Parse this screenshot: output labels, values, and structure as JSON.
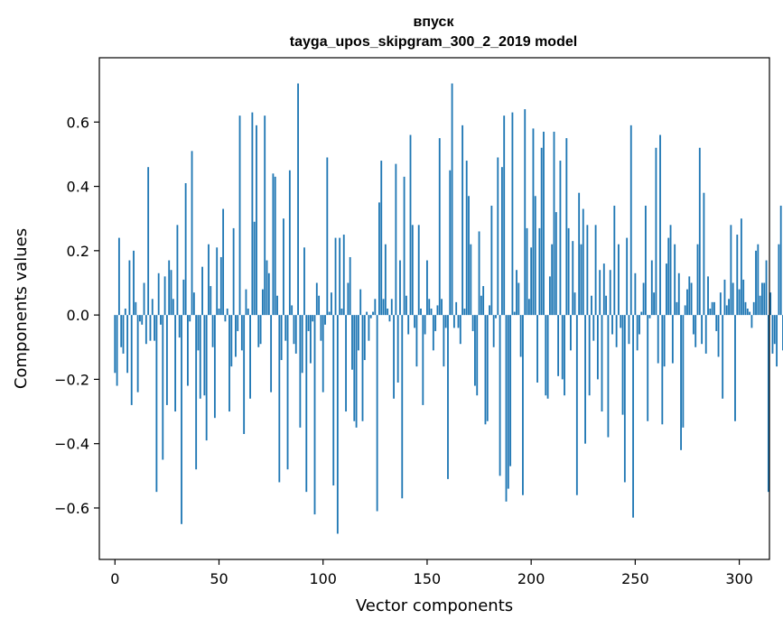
{
  "chart_data": {
    "type": "bar",
    "title": "впуск",
    "subtitle": "tayga_upos_skipgram_300_2_2019 model",
    "xlabel": "Vector components",
    "ylabel": "Components values",
    "xlim": [
      -7.5,
      314.5
    ],
    "ylim": [
      -0.76,
      0.8
    ],
    "x_ticks": [
      0,
      50,
      100,
      150,
      200,
      250,
      300
    ],
    "y_ticks": [
      -0.6,
      -0.4,
      -0.2,
      0.0,
      0.2,
      0.4,
      0.6
    ],
    "x_tick_labels": [
      "0",
      "50",
      "100",
      "150",
      "200",
      "250",
      "300"
    ],
    "y_tick_labels": [
      "−0.6",
      "−0.4",
      "−0.2",
      "0.0",
      "0.2",
      "0.4",
      "0.6"
    ],
    "bar_color": "#1f77b4",
    "values": [
      -0.18,
      -0.22,
      0.24,
      -0.1,
      -0.12,
      0.02,
      -0.18,
      0.17,
      -0.28,
      0.2,
      0.04,
      -0.24,
      -0.02,
      -0.03,
      0.1,
      -0.09,
      0.46,
      -0.08,
      0.05,
      -0.08,
      -0.55,
      0.13,
      -0.03,
      -0.45,
      0.12,
      -0.28,
      0.17,
      0.14,
      0.05,
      -0.3,
      0.28,
      -0.07,
      -0.65,
      0.11,
      0.41,
      -0.22,
      -0.02,
      0.51,
      0.07,
      -0.48,
      -0.11,
      -0.26,
      0.15,
      -0.25,
      -0.39,
      0.22,
      0.09,
      -0.1,
      -0.32,
      0.21,
      0.02,
      0.18,
      0.33,
      -0.02,
      0.02,
      -0.3,
      -0.16,
      0.27,
      -0.13,
      -0.05,
      0.62,
      -0.11,
      -0.37,
      0.08,
      0.02,
      -0.26,
      0.63,
      0.29,
      0.59,
      -0.1,
      -0.09,
      0.08,
      0.62,
      0.17,
      0.13,
      -0.24,
      0.44,
      0.43,
      0.06,
      -0.52,
      -0.14,
      0.3,
      -0.08,
      -0.48,
      0.45,
      0.03,
      -0.09,
      -0.12,
      0.72,
      -0.35,
      -0.18,
      0.21,
      -0.55,
      -0.05,
      -0.15,
      -0.02,
      -0.62,
      0.1,
      0.06,
      -0.08,
      -0.24,
      -0.03,
      0.49,
      0.01,
      0.07,
      -0.53,
      0.24,
      -0.68,
      0.24,
      0.02,
      0.25,
      -0.3,
      0.1,
      0.18,
      -0.17,
      -0.33,
      -0.35,
      -0.11,
      0.08,
      -0.33,
      -0.14,
      0.01,
      -0.08,
      -0.01,
      0.01,
      0.05,
      -0.61,
      0.35,
      0.48,
      0.05,
      0.22,
      0.02,
      -0.02,
      0.05,
      -0.26,
      0.47,
      -0.21,
      0.17,
      -0.57,
      0.43,
      0.06,
      -0.06,
      0.56,
      0.28,
      -0.04,
      -0.16,
      0.28,
      0.02,
      -0.28,
      -0.06,
      0.17,
      0.05,
      0.02,
      -0.11,
      -0.05,
      0.03,
      0.55,
      0.05,
      -0.16,
      -0.04,
      -0.51,
      0.45,
      0.72,
      -0.04,
      0.04,
      -0.04,
      -0.09,
      0.59,
      0.02,
      0.48,
      0.37,
      0.22,
      -0.05,
      -0.22,
      -0.25,
      0.26,
      0.06,
      0.09,
      -0.34,
      -0.33,
      0.03,
      0.34,
      -0.1,
      -0.01,
      0.49,
      -0.5,
      0.46,
      0.62,
      -0.58,
      -0.54,
      -0.47,
      0.63,
      0.01,
      0.14,
      0.1,
      -0.13,
      -0.56,
      0.64,
      0.27,
      0.05,
      0.21,
      0.58,
      0.37,
      -0.21,
      0.27,
      0.52,
      0.57,
      -0.25,
      -0.26,
      0.12,
      0.22,
      0.57,
      0.32,
      -0.19,
      0.48,
      -0.2,
      -0.25,
      0.55,
      0.27,
      -0.11,
      0.23,
      0.07,
      -0.56,
      0.38,
      0.22,
      0.33,
      -0.4,
      0.28,
      -0.25,
      0.06,
      -0.08,
      0.28,
      -0.2,
      0.14,
      -0.3,
      0.16,
      0.06,
      -0.38,
      0.14,
      -0.06,
      0.34,
      -0.1,
      0.22,
      -0.04,
      -0.31,
      -0.52,
      0.24,
      -0.09,
      0.59,
      -0.63,
      0.13,
      -0.11,
      -0.06,
      0.01,
      0.1,
      0.34,
      -0.33,
      -0.01,
      0.17,
      0.07,
      0.52,
      -0.15,
      0.56,
      -0.34,
      -0.16,
      0.16,
      0.24,
      0.28,
      -0.15,
      0.22,
      0.04,
      0.13,
      -0.42,
      -0.35,
      0.03,
      0.08,
      0.12,
      0.1,
      -0.06,
      -0.1,
      0.22,
      0.52,
      -0.09,
      0.38,
      -0.12,
      0.12,
      0.02,
      0.04,
      0.04,
      -0.05,
      -0.13,
      0.07,
      -0.26,
      0.11,
      0.03,
      0.05,
      0.28,
      0.1,
      -0.33,
      0.25,
      0.08,
      0.3,
      0.11,
      0.04,
      0.02,
      0.01,
      -0.04,
      0.04,
      0.2,
      0.22,
      0.06,
      0.1,
      0.1,
      0.17,
      -0.55,
      0.07,
      -0.12,
      -0.09,
      -0.16,
      0.22,
      0.34,
      -0.11
    ]
  }
}
